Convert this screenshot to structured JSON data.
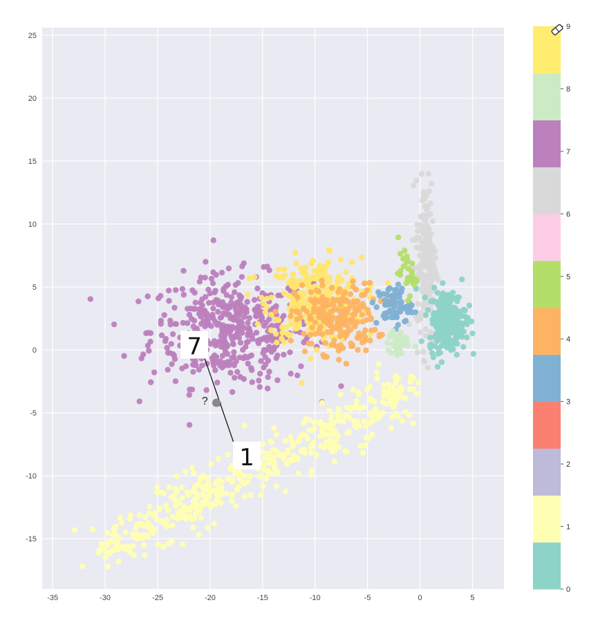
{
  "chart_data": {
    "type": "scatter",
    "title": "",
    "xlabel": "",
    "ylabel": "",
    "xlim": [
      -36,
      8
    ],
    "ylim": [
      -19,
      25.6
    ],
    "x_ticks": [
      -35,
      -30,
      -25,
      -20,
      -15,
      -10,
      -5,
      0,
      5
    ],
    "y_ticks": [
      -15,
      -10,
      -5,
      0,
      5,
      10,
      15,
      20,
      25
    ],
    "grid": true,
    "colormap": "Set3",
    "colorbar": {
      "ticks": [
        "0",
        "1",
        "2",
        "3",
        "4",
        "5",
        "6",
        "7",
        "8",
        "9"
      ],
      "colors": [
        "#8dd3c7",
        "#ffffb3",
        "#bebada",
        "#fb8072",
        "#80b1d3",
        "#fdb462",
        "#b3de69",
        "#fccde5",
        "#d9d9d9",
        "#bc80bd",
        "#ccebc5",
        "#ffed6f"
      ],
      "eraser_icon": "eraser-icon"
    },
    "clusters": [
      {
        "label": "7",
        "color": "#bc80bd",
        "center": [
          -18,
          1.5
        ],
        "spread": [
          7,
          4
        ],
        "count": 450
      },
      {
        "label": "9",
        "color": "#ffe66e",
        "center": [
          -10,
          4
        ],
        "spread": [
          4,
          3
        ],
        "count": 320
      },
      {
        "label": "4",
        "color": "#fdb462",
        "center": [
          -8,
          2.5
        ],
        "spread": [
          3.5,
          2.5
        ],
        "count": 220
      },
      {
        "label": "1",
        "color": "#ffffb3",
        "center": [
          -13,
          -7
        ],
        "spread": [
          6,
          3
        ],
        "count": 480
      },
      {
        "label": "6",
        "color": "#d9d9d9",
        "center": [
          0.6,
          7
        ],
        "spread": [
          0.9,
          6
        ],
        "count": 180
      },
      {
        "label": "0",
        "color": "#8dd3c7",
        "center": [
          2.6,
          2.3
        ],
        "spread": [
          1.6,
          2.2
        ],
        "count": 260
      },
      {
        "label": "3",
        "color": "#80b1d3",
        "center": [
          -2.5,
          3.5
        ],
        "spread": [
          1.5,
          1.5
        ],
        "count": 70
      },
      {
        "label": "5",
        "color": "#b3de69",
        "center": [
          -1.2,
          6
        ],
        "spread": [
          0.8,
          1.5
        ],
        "count": 30
      },
      {
        "label": "8",
        "color": "#ccebc5",
        "center": [
          -2,
          0.5
        ],
        "spread": [
          1,
          1
        ],
        "count": 40
      }
    ],
    "annotations": [
      {
        "text": "7",
        "x": -21.5,
        "y": 0.3
      },
      {
        "text": "?",
        "x": -20.5,
        "y": -4
      },
      {
        "text": "1",
        "x": -16.5,
        "y": -8.5
      }
    ],
    "arrow": {
      "from": [
        -17.7,
        -7.5
      ],
      "to": [
        -21,
        0.5
      ],
      "mid_point": [
        -19.4,
        -4.2
      ],
      "color": "#222"
    }
  }
}
